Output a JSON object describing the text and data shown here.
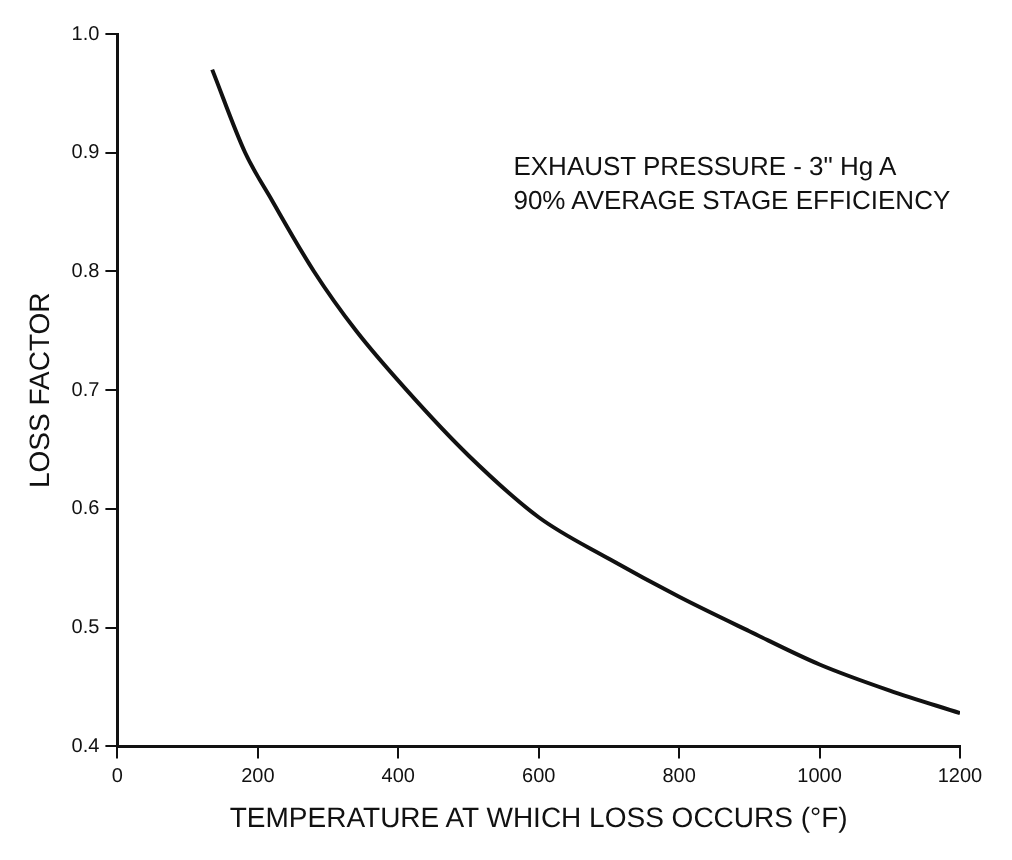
{
  "chart_data": {
    "type": "line",
    "xlabel": "TEMPERATURE AT WHICH LOSS OCCURS (°F)",
    "ylabel": "LOSS FACTOR",
    "annotations": [
      "EXHAUST PRESSURE - 3\" Hg A",
      "90% AVERAGE STAGE EFFICIENCY"
    ],
    "series": [
      {
        "color": "#111111",
        "x": [
          135,
          182,
          220,
          280,
          340,
          412,
          500,
          600,
          700,
          800,
          900,
          1000,
          1100,
          1200
        ],
        "values": [
          0.97,
          0.9,
          0.86,
          0.8,
          0.75,
          0.7,
          0.645,
          0.593,
          0.558,
          0.526,
          0.497,
          0.469,
          0.447,
          0.428
        ]
      }
    ],
    "xlim": [
      0,
      1200
    ],
    "xticks": [
      0,
      200,
      400,
      600,
      800,
      1000,
      1200
    ],
    "ylim": [
      0.4,
      1.0
    ],
    "yticks": [
      {
        "value": 0.4,
        "label": "0.4"
      },
      {
        "value": 0.5,
        "label": "0.5"
      },
      {
        "value": 0.6,
        "label": "0.6"
      },
      {
        "value": 0.7,
        "label": "0.7"
      },
      {
        "value": 0.8,
        "label": "0.8"
      },
      {
        "value": 0.9,
        "label": "0.9"
      },
      {
        "value": 1.0,
        "label": "1.0"
      }
    ],
    "grid": false,
    "legend": false,
    "marker": "none",
    "line_style": "solid"
  }
}
